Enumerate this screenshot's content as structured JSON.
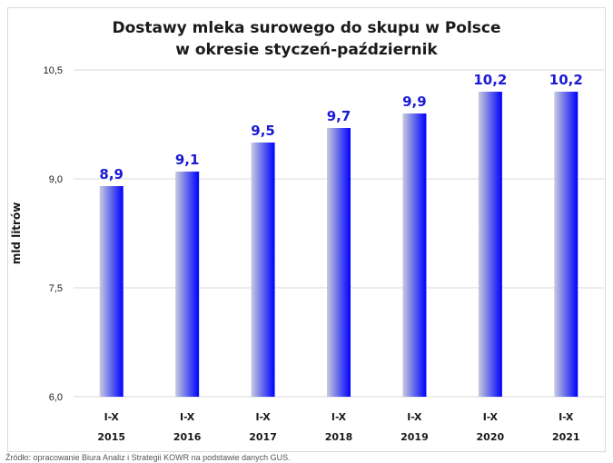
{
  "colors": {
    "bar_light": "#c9cbe0",
    "bar_dark": "#0000ff",
    "value_label": "#1a1ad6",
    "grid": "#d9d9d9",
    "text": "#1a1a1a"
  },
  "chart_data": {
    "type": "bar",
    "title_line1": "Dostawy mleka surowego do skupu w Polsce",
    "title_line2": "w okresie styczeń-październik",
    "ylabel": "mld litrów",
    "categories": [
      [
        "I-X",
        "2015"
      ],
      [
        "I-X",
        "2016"
      ],
      [
        "I-X",
        "2017"
      ],
      [
        "I-X",
        "2018"
      ],
      [
        "I-X",
        "2019"
      ],
      [
        "I-X",
        "2020"
      ],
      [
        "I-X",
        "2021"
      ]
    ],
    "values": [
      8.9,
      9.1,
      9.5,
      9.7,
      9.9,
      10.2,
      10.2
    ],
    "value_labels": [
      "8,9",
      "9,1",
      "9,5",
      "9,7",
      "9,9",
      "10,2",
      "10,2"
    ],
    "yticks": [
      6.0,
      7.5,
      9.0,
      10.5
    ],
    "ytick_labels": [
      "6,0",
      "7,5",
      "9,0",
      "10,5"
    ],
    "ylim": [
      6.0,
      10.5
    ],
    "grid": true,
    "legend": false
  },
  "source": "Źródło: opracowanie Biura Analiz i Strategii KOWR na podstawie danych GUS."
}
